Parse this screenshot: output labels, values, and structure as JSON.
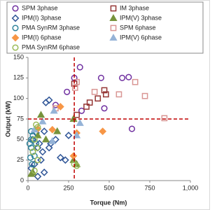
{
  "chart_data": {
    "type": "scatter",
    "x_label": "Torque (Nm)",
    "y_label": "Output (kW)",
    "xlim": [
      0,
      1000
    ],
    "xticks": [
      0,
      250,
      500,
      750,
      {
        "value": 1000,
        "label": "1,000"
      }
    ],
    "ylim": [
      0,
      150
    ],
    "yticks": [
      0,
      25,
      50,
      75,
      100,
      125,
      150
    ],
    "ref_lines": [
      {
        "axis": "x",
        "value": 285,
        "color": "#c00000"
      },
      {
        "axis": "y",
        "value": 75,
        "color": "#c00000"
      }
    ],
    "series": [
      {
        "name": "SPM 3phase",
        "color": "#7030a0",
        "marker": "circle",
        "filled": false,
        "x": [
          285,
          320,
          170,
          240,
          450,
          580,
          620,
          640,
          470,
          330
        ],
        "values": [
          125,
          138,
          92,
          108,
          125,
          125,
          126,
          63,
          88,
          85
        ]
      },
      {
        "name": "IM 3phase",
        "color": "#953735",
        "marker": "square",
        "filled": false,
        "x": [
          285,
          430,
          380,
          300,
          360,
          480,
          470
        ],
        "values": [
          118,
          100,
          95,
          80,
          90,
          105,
          110
        ]
      },
      {
        "name": "IPM(I) 3phase",
        "color": "#2f5597",
        "marker": "diamond",
        "filled": false,
        "x": [
          130,
          110,
          100,
          50,
          30,
          60,
          90,
          130,
          170,
          200,
          230,
          40,
          20,
          80,
          100,
          60,
          250,
          140,
          70
        ],
        "values": [
          98,
          95,
          60,
          58,
          50,
          40,
          35,
          40,
          50,
          28,
          25,
          20,
          15,
          25,
          10,
          5,
          55,
          45,
          45
        ]
      },
      {
        "name": "IPM(V) 3phase",
        "color": "#77933c",
        "marker": "triangle",
        "filled": true,
        "x": [
          80,
          30,
          20,
          280,
          280,
          180,
          300,
          110,
          60
        ],
        "values": [
          80,
          10,
          8,
          75,
          25,
          60,
          20,
          50,
          55
        ]
      },
      {
        "name": "PMA SynRM 3phase",
        "color": "#31859c",
        "marker": "circle",
        "filled": false,
        "x": [
          20,
          30,
          20,
          10,
          20,
          30,
          40,
          15,
          50,
          25
        ],
        "values": [
          60,
          55,
          50,
          45,
          40,
          35,
          30,
          28,
          45,
          20
        ]
      },
      {
        "name": "SPM 6phase",
        "color": "#d99694",
        "marker": "square",
        "filled": false,
        "x": [
          170,
          300,
          560,
          660,
          720,
          840,
          410,
          290
        ],
        "values": [
          88,
          120,
          105,
          120,
          103,
          76,
          108,
          113
        ]
      },
      {
        "name": "IPM(I) 6phase",
        "color": "#f79646",
        "marker": "diamond",
        "filled": true,
        "x": [
          280,
          460,
          300,
          150,
          60,
          200
        ],
        "values": [
          30,
          60,
          58,
          62,
          63,
          90
        ]
      },
      {
        "name": "IPM(V) 6phase",
        "color": "#95b3d7",
        "marker": "triangle",
        "filled": true,
        "x": [
          320,
          160,
          150,
          90,
          40,
          300
        ],
        "values": [
          70,
          85,
          48,
          72,
          62,
          55
        ]
      },
      {
        "name": "PMA SynRM 6phase",
        "color": "#9bbb59",
        "marker": "circle",
        "filled": false,
        "x": [
          50,
          60,
          40,
          55,
          30,
          60,
          285,
          300,
          40
        ],
        "values": [
          68,
          65,
          50,
          40,
          35,
          25,
          20,
          18,
          12
        ]
      }
    ]
  }
}
